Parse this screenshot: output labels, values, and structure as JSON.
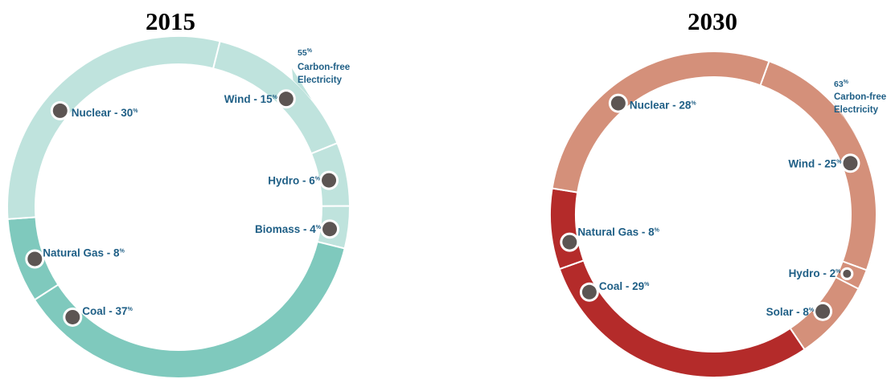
{
  "chart_data": [
    {
      "type": "pie",
      "title": "2015",
      "segments": [
        {
          "label": "Wind - 15",
          "name": "Wind",
          "value": 15,
          "group": "carbon-free"
        },
        {
          "label": "Hydro - 6",
          "name": "Hydro",
          "value": 6,
          "group": "carbon-free"
        },
        {
          "label": "Biomass - 4",
          "name": "Biomass",
          "value": 4,
          "group": "carbon-free"
        },
        {
          "label": "Coal - 37",
          "name": "Coal",
          "value": 37,
          "group": "fossil"
        },
        {
          "label": "Natural Gas - 8",
          "name": "Natural Gas",
          "value": 8,
          "group": "fossil"
        },
        {
          "label": "Nuclear - 30",
          "name": "Nuclear",
          "value": 30,
          "group": "carbon-free"
        }
      ],
      "pct_sign": "%",
      "carbon_free": {
        "value": "55",
        "line1": "Carbon-free",
        "line2": "Electricity"
      },
      "colors": {
        "carbon-free": "#bfe3dd",
        "fossil": "#7fc9bd"
      }
    },
    {
      "type": "pie",
      "title": "2030",
      "segments": [
        {
          "label": "Wind - 25",
          "name": "Wind",
          "value": 25,
          "group": "carbon-free"
        },
        {
          "label": "Hydro - 2",
          "name": "Hydro",
          "value": 2,
          "group": "carbon-free"
        },
        {
          "label": "Solar - 8",
          "name": "Solar",
          "value": 8,
          "group": "carbon-free"
        },
        {
          "label": "Coal - 29",
          "name": "Coal",
          "value": 29,
          "group": "fossil"
        },
        {
          "label": "Natural Gas - 8",
          "name": "Natural Gas",
          "value": 8,
          "group": "fossil"
        },
        {
          "label": "Nuclear - 28",
          "name": "Nuclear",
          "value": 28,
          "group": "carbon-free"
        }
      ],
      "pct_sign": "%",
      "carbon_free": {
        "value": "63",
        "line1": "Carbon-free",
        "line2": "Electricity"
      },
      "colors": {
        "carbon-free": "#d4907a",
        "fossil": "#b42b2a"
      }
    }
  ]
}
